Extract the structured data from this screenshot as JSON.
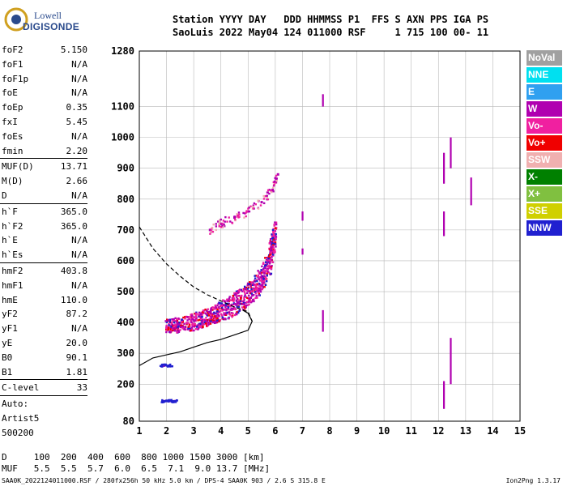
{
  "logo": {
    "line1": "Lowell",
    "line2": "DIGISONDE"
  },
  "header": {
    "labels": "Station YYYY DAY   DDD HHMMSS P1  FFS S AXN PPS IGA PS",
    "values": "SaoLuis 2022 May04 124 011000 RSF     1 715 100 00- 11"
  },
  "params": {
    "group1": [
      {
        "label": "foF2",
        "value": "5.150"
      },
      {
        "label": "foF1",
        "value": "N/A"
      },
      {
        "label": "foF1p",
        "value": "N/A"
      },
      {
        "label": "foE",
        "value": "N/A"
      },
      {
        "label": "foEp",
        "value": "0.35"
      },
      {
        "label": "fxI",
        "value": "5.45"
      },
      {
        "label": "foEs",
        "value": "N/A"
      },
      {
        "label": "fmin",
        "value": "2.20"
      }
    ],
    "group2": [
      {
        "label": "MUF(D)",
        "value": "13.71"
      },
      {
        "label": "M(D)",
        "value": "2.66"
      },
      {
        "label": "D",
        "value": "N/A"
      }
    ],
    "group3": [
      {
        "label": "h`F",
        "value": "365.0"
      },
      {
        "label": "h`F2",
        "value": "365.0"
      },
      {
        "label": "h`E",
        "value": "N/A"
      },
      {
        "label": "h`Es",
        "value": "N/A"
      }
    ],
    "group4": [
      {
        "label": "hmF2",
        "value": "403.8"
      },
      {
        "label": "hmF1",
        "value": "N/A"
      },
      {
        "label": "hmE",
        "value": "110.0"
      },
      {
        "label": "yF2",
        "value": "87.2"
      },
      {
        "label": "yF1",
        "value": "N/A"
      },
      {
        "label": "yE",
        "value": "20.0"
      },
      {
        "label": "B0",
        "value": "90.1"
      },
      {
        "label": "B1",
        "value": "1.81"
      }
    ],
    "clevel": {
      "label": "C-level",
      "value": "33"
    },
    "auto_label": "Auto:",
    "auto_program": "Artist5",
    "auto_code": "500200"
  },
  "legend": [
    {
      "label": "NoVal",
      "color": "#a0a0a0"
    },
    {
      "label": "NNE",
      "color": "#00e0f0"
    },
    {
      "label": "E",
      "color": "#30a0f0"
    },
    {
      "label": "W",
      "color": "#b000b0"
    },
    {
      "label": "Vo-",
      "color": "#f020a0"
    },
    {
      "label": "Vo+",
      "color": "#f00000"
    },
    {
      "label": "SSW",
      "color": "#f0b0b0"
    },
    {
      "label": "X-",
      "color": "#008000"
    },
    {
      "label": "X+",
      "color": "#80c040"
    },
    {
      "label": "SSE",
      "color": "#d0d000"
    },
    {
      "label": "NNW",
      "color": "#2020d0"
    }
  ],
  "footer": {
    "d_row": "D     100  200  400  600  800 1000 1500 3000 [km]",
    "muf_row": "MUF   5.5  5.5  5.7  6.0  6.5  7.1  9.0 13.7 [MHz]",
    "file_line": "SAA0K_2022124011000.RSF / 280fx256h 50 kHz 5.0 km / DPS-4 SAA0K 903 / 2.6 S 315.8 E",
    "version": "Ion2Png 1.3.17"
  },
  "chart_data": {
    "type": "scatter",
    "xlabel": "",
    "ylabel": "",
    "xlim": [
      1,
      15
    ],
    "ylim_display": [
      80,
      1280
    ],
    "x_ticks": [
      1,
      2,
      3,
      4,
      5,
      6,
      7,
      8,
      9,
      10,
      11,
      12,
      13,
      14,
      15
    ],
    "y_ticks": [
      80,
      200,
      300,
      400,
      500,
      600,
      700,
      800,
      900,
      1000,
      1100,
      1280
    ],
    "grid": true,
    "clusters": [
      {
        "name": "F2 trace",
        "points": [
          [
            2.0,
            380
          ],
          [
            2.3,
            380
          ],
          [
            2.6,
            385
          ],
          [
            3.0,
            390
          ],
          [
            3.3,
            400
          ],
          [
            3.6,
            410
          ],
          [
            3.9,
            420
          ],
          [
            4.2,
            430
          ],
          [
            4.5,
            445
          ],
          [
            4.8,
            460
          ],
          [
            5.1,
            480
          ],
          [
            5.4,
            510
          ],
          [
            5.6,
            540
          ],
          [
            5.8,
            580
          ],
          [
            5.9,
            630
          ],
          [
            6.0,
            680
          ]
        ]
      },
      {
        "name": "F2 second hop",
        "points": [
          [
            3.6,
            700
          ],
          [
            4.0,
            720
          ],
          [
            4.5,
            740
          ],
          [
            5.0,
            760
          ],
          [
            5.5,
            790
          ],
          [
            5.9,
            830
          ],
          [
            6.1,
            880
          ]
        ]
      },
      {
        "name": "low band",
        "points": [
          [
            1.9,
            145
          ],
          [
            2.1,
            145
          ],
          [
            2.3,
            145
          ],
          [
            1.9,
            260
          ],
          [
            2.1,
            260
          ]
        ]
      }
    ],
    "profile_solid": [
      [
        1.0,
        260
      ],
      [
        1.5,
        285
      ],
      [
        2.0,
        295
      ],
      [
        2.5,
        305
      ],
      [
        3.0,
        320
      ],
      [
        3.5,
        335
      ],
      [
        4.0,
        345
      ],
      [
        4.5,
        360
      ],
      [
        5.0,
        375
      ],
      [
        5.15,
        404
      ],
      [
        5.0,
        430
      ],
      [
        4.8,
        440
      ]
    ],
    "profile_dashed": [
      [
        1.0,
        710
      ],
      [
        1.5,
        640
      ],
      [
        2.0,
        590
      ],
      [
        2.5,
        550
      ],
      [
        3.0,
        515
      ],
      [
        3.5,
        490
      ],
      [
        4.0,
        470
      ],
      [
        4.5,
        450
      ],
      [
        5.0,
        435
      ],
      [
        5.15,
        404
      ]
    ]
  }
}
